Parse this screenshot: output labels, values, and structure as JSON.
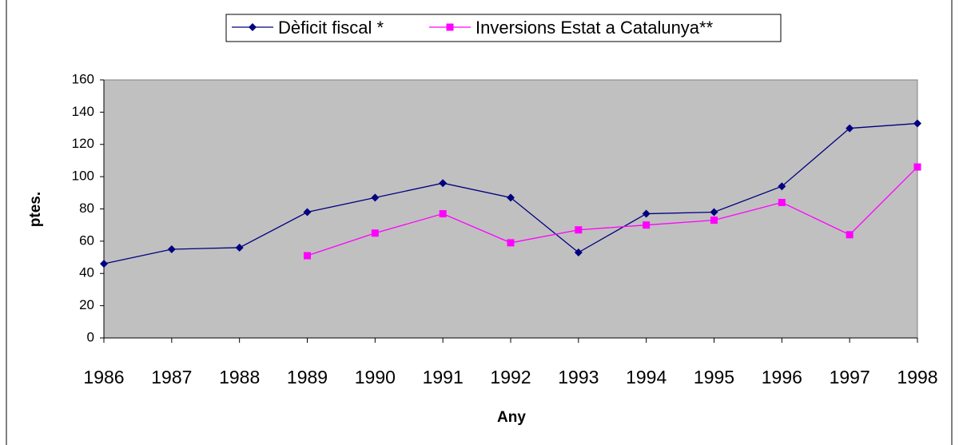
{
  "chart_data": {
    "type": "line",
    "x_label": "Any",
    "y_label": "ptes.",
    "categories": [
      "1986",
      "1987",
      "1988",
      "1989",
      "1990",
      "1991",
      "1992",
      "1993",
      "1994",
      "1995",
      "1996",
      "1997",
      "1998"
    ],
    "series": [
      {
        "name": "Dèficit fiscal *",
        "color": "#000080",
        "marker": "diamond",
        "values": [
          46,
          55,
          56,
          78,
          87,
          96,
          87,
          53,
          77,
          78,
          94,
          130,
          133
        ]
      },
      {
        "name": "Inversions Estat a Catalunya**",
        "color": "#ff00ff",
        "marker": "square",
        "values": [
          null,
          null,
          null,
          51,
          65,
          77,
          59,
          67,
          70,
          73,
          84,
          64,
          106
        ]
      }
    ],
    "ylim": [
      0,
      160
    ],
    "yticks": [
      0,
      20,
      40,
      60,
      80,
      100,
      120,
      140,
      160
    ],
    "grid": false,
    "legend": "top"
  }
}
